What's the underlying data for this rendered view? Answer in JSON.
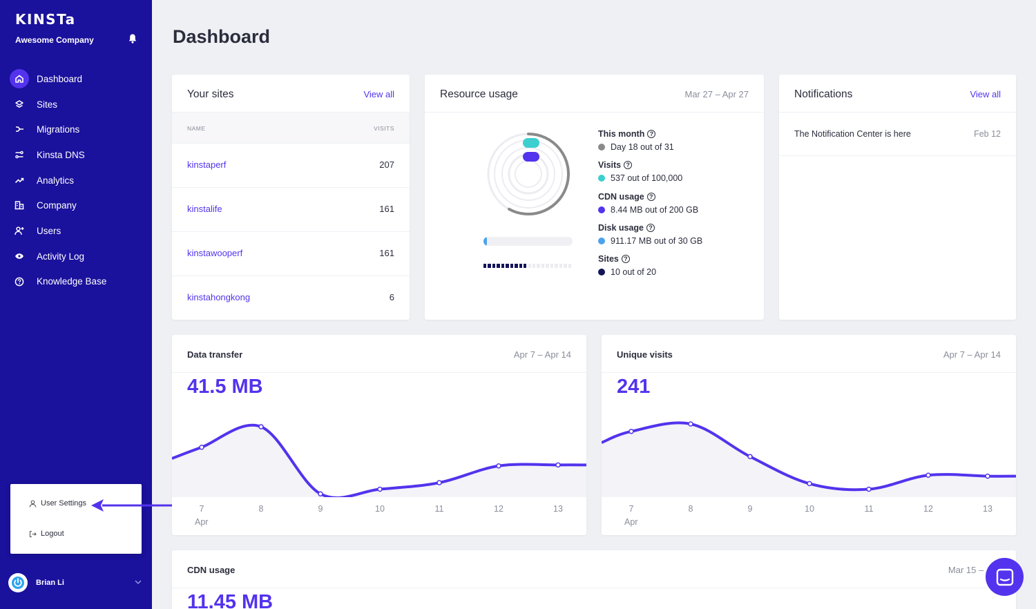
{
  "sidebar": {
    "logo": "KINSTa",
    "company": "Awesome Company",
    "items": [
      {
        "label": "Dashboard",
        "icon": "home-icon",
        "active": true
      },
      {
        "label": "Sites",
        "icon": "layers-icon"
      },
      {
        "label": "Migrations",
        "icon": "migrate-arrow-icon"
      },
      {
        "label": "Kinsta DNS",
        "icon": "dns-icon"
      },
      {
        "label": "Analytics",
        "icon": "trend-up-icon"
      },
      {
        "label": "Company",
        "icon": "building-icon"
      },
      {
        "label": "Users",
        "icon": "add-user-icon"
      },
      {
        "label": "Activity Log",
        "icon": "eye-icon"
      },
      {
        "label": "Knowledge Base",
        "icon": "help-circle-icon"
      }
    ],
    "user_menu": {
      "settings": "User Settings",
      "logout": "Logout"
    },
    "user_name": "Brian Li"
  },
  "page_title": "Dashboard",
  "your_sites": {
    "title": "Your sites",
    "view_all": "View all",
    "col_name": "NAME",
    "col_visits": "VISITS",
    "rows": [
      {
        "name": "kinstaperf",
        "visits": "207"
      },
      {
        "name": "kinstalife",
        "visits": "161"
      },
      {
        "name": "kinstawooperf",
        "visits": "161"
      },
      {
        "name": "kinstahongkong",
        "visits": "6"
      }
    ]
  },
  "resource_usage": {
    "title": "Resource usage",
    "date_range": "Mar 27 – Apr 27",
    "this_month_label": "This month",
    "this_month_value": "Day 18 out of 31",
    "visits_label": "Visits",
    "visits_value": "537 out of 100,000",
    "cdn_label": "CDN usage",
    "cdn_value": "8.44 MB out of 200 GB",
    "disk_label": "Disk usage",
    "disk_value": "911.17 MB out of 30 GB",
    "sites_label": "Sites",
    "sites_value": "10 out of 20",
    "help_glyph": "?",
    "day_progress": 0.58,
    "visits_progress": 0.0054,
    "cdn_progress": 4e-05,
    "disk_progress": 0.03,
    "sites_used": 10,
    "sites_total": 20,
    "colors": {
      "month": "#8a8a8a",
      "visits": "#3ccfcf",
      "cdn": "#5333ed",
      "disk": "#4aa3ec",
      "sites": "#14145a"
    }
  },
  "notifications": {
    "title": "Notifications",
    "view_all": "View all",
    "items": [
      {
        "text": "The Notification Center is here",
        "date": "Feb 12"
      }
    ]
  },
  "data_transfer": {
    "title": "Data transfer",
    "date_range": "Apr 7 – Apr 14",
    "total": "41.5 MB",
    "month_label": "Apr"
  },
  "unique_visits": {
    "title": "Unique visits",
    "date_range": "Apr 7 – Apr 14",
    "total": "241",
    "month_label": "Apr"
  },
  "cdn_usage": {
    "title": "CDN usage",
    "date_range": "Mar 15 – Ap",
    "total": "11.45 MB"
  },
  "chart_data": [
    {
      "type": "area",
      "name": "data-transfer",
      "x": [
        "7",
        "8",
        "9",
        "10",
        "11",
        "12",
        "13"
      ],
      "series": [
        {
          "values": [
            0.55,
            0.77,
            0.05,
            0.1,
            0.17,
            0.35,
            0.36
          ]
        }
      ],
      "grid": false
    },
    {
      "type": "area",
      "name": "unique-visits",
      "x": [
        "7",
        "8",
        "9",
        "10",
        "11",
        "12",
        "13"
      ],
      "series": [
        {
          "values": [
            0.72,
            0.8,
            0.45,
            0.16,
            0.1,
            0.25,
            0.24
          ]
        }
      ],
      "grid": false
    }
  ],
  "accent": "#5333ed",
  "sidebar_bg": "#1a119c"
}
